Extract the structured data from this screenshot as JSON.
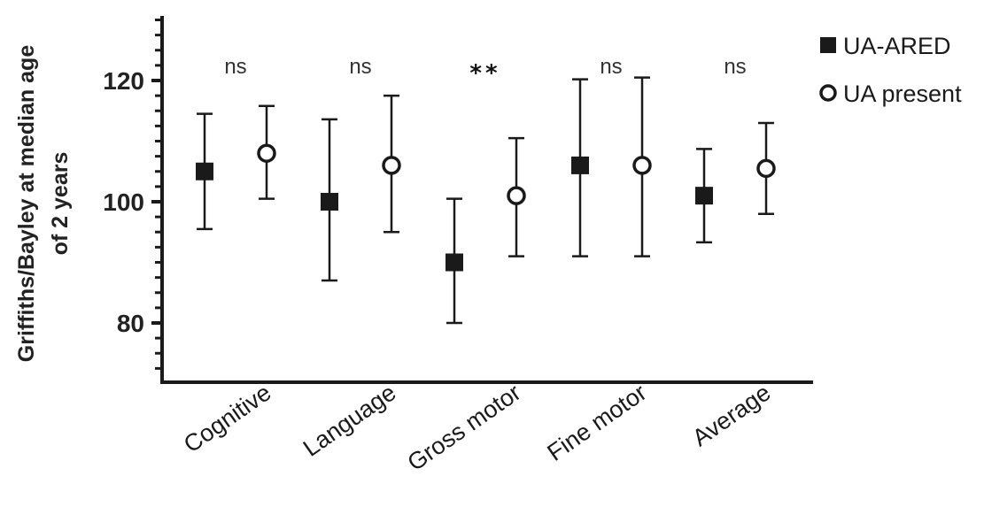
{
  "chart_data": {
    "type": "scatter",
    "ylabel_line1": "Griffiths/Bayley at median age",
    "ylabel_line2": "of 2 years",
    "ylim": [
      70,
      130
    ],
    "yticks": [
      80,
      100,
      120
    ],
    "categories": [
      "Cognitive",
      "Language",
      "Gross motor",
      "Fine motor",
      "Average"
    ],
    "significance": [
      "ns",
      "ns",
      "**",
      "ns",
      "ns"
    ],
    "series": [
      {
        "name": "UA-ARED",
        "marker": "filled-square",
        "values": [
          105,
          100,
          90,
          106,
          101
        ],
        "lower": [
          95.5,
          87,
          80,
          91,
          93.3
        ],
        "upper": [
          114.5,
          113.6,
          100.5,
          120.2,
          108.7
        ]
      },
      {
        "name": "UA present",
        "marker": "open-circle",
        "values": [
          108,
          106,
          101,
          106,
          105.5
        ],
        "lower": [
          100.5,
          95,
          91,
          91,
          98
        ],
        "upper": [
          115.8,
          117.5,
          110.5,
          120.5,
          113
        ]
      }
    ],
    "legend_position": "top-right",
    "colors": {
      "ink": "#1a1a1a"
    }
  }
}
